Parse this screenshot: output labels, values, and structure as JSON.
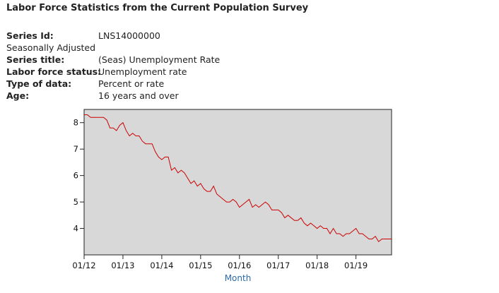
{
  "header": {
    "title": "Labor Force Statistics from the Current Population Survey"
  },
  "series_info": [
    {
      "label": "Series Id:",
      "value": "LNS14000000",
      "bold": true
    },
    {
      "label": "Seasonally Adjusted",
      "value": "",
      "bold": false
    },
    {
      "label": "Series title:",
      "value": "(Seas) Unemployment Rate",
      "bold": true
    },
    {
      "label": "Labor force status:",
      "value": "Unemployment rate",
      "bold": true
    },
    {
      "label": "Type of data:",
      "value": "Percent or rate",
      "bold": true
    },
    {
      "label": "Age:",
      "value": "16 years and over",
      "bold": true
    }
  ],
  "chart_data": {
    "type": "line",
    "xlabel": "Month",
    "ylabel": "",
    "xlim": [
      "01/12",
      "12/19"
    ],
    "ylim": [
      3.0,
      8.5
    ],
    "x_ticks": [
      "01/12",
      "01/13",
      "01/14",
      "01/15",
      "01/16",
      "01/17",
      "01/18",
      "01/19"
    ],
    "y_ticks": [
      4,
      5,
      6,
      7,
      8
    ],
    "grid": false,
    "colors": {
      "line": "#cc0000",
      "plot_bg": "#d8d8d8",
      "axis_title": "#2b6aa8"
    },
    "series": [
      {
        "start": "01/12",
        "values": [
          8.3,
          8.3,
          8.2,
          8.2,
          8.2,
          8.2,
          8.2,
          8.1,
          7.8,
          7.8,
          7.7,
          7.9,
          8.0,
          7.7,
          7.5,
          7.6,
          7.5,
          7.5,
          7.3,
          7.2,
          7.2,
          7.2,
          6.9,
          6.7,
          6.6,
          6.7,
          6.7,
          6.2,
          6.3,
          6.1,
          6.2,
          6.1,
          5.9,
          5.7,
          5.8,
          5.6,
          5.7,
          5.5,
          5.4,
          5.4,
          5.6,
          5.3,
          5.2,
          5.1,
          5.0,
          5.0,
          5.1,
          5.0,
          4.8,
          4.9,
          5.0,
          5.1,
          4.8,
          4.9,
          4.8,
          4.9,
          5.0,
          4.9,
          4.7,
          4.7,
          4.7,
          4.6,
          4.4,
          4.5,
          4.4,
          4.3,
          4.3,
          4.4,
          4.2,
          4.1,
          4.2,
          4.1,
          4.0,
          4.1,
          4.0,
          4.0,
          3.8,
          4.0,
          3.8,
          3.8,
          3.7,
          3.8,
          3.8,
          3.9,
          4.0,
          3.8,
          3.8,
          3.7,
          3.6,
          3.6,
          3.7,
          3.5,
          3.6,
          3.6,
          3.6,
          3.6
        ]
      }
    ]
  }
}
